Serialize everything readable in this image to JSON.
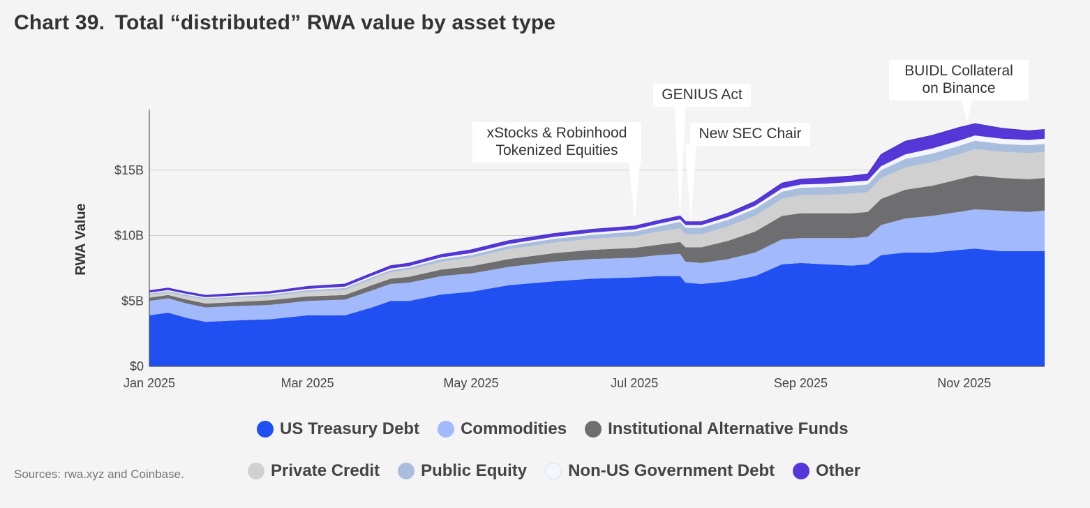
{
  "header": {
    "chart_number": "Chart 39.",
    "title": "Total “distributed” RWA value by asset type"
  },
  "source": "Sources: rwa.xyz and Coinbase.",
  "colors": {
    "us_treasury": "#2150f2",
    "commodities": "#a2b9fb",
    "inst_alt": "#6e6e70",
    "private_credit": "#d0d0d0",
    "public_equity": "#a9bedd",
    "non_us_gov": "#f3f6fd",
    "other": "#5536d6"
  },
  "chart_data": {
    "type": "area",
    "stacked": true,
    "title": "Total “distributed” RWA value by asset type",
    "xlabel": "",
    "ylabel": "RWA Value",
    "ylim": [
      0,
      20
    ],
    "y_unit": "$B",
    "yticks": [
      {
        "value": 0,
        "label": "$0"
      },
      {
        "value": 5,
        "label": "$5B"
      },
      {
        "value": 10,
        "label": "$10B"
      },
      {
        "value": 15,
        "label": "$15B"
      }
    ],
    "x_range": [
      "2025-01-01",
      "2025-12-01"
    ],
    "xticks": [
      {
        "date": "2025-01-01",
        "label": "Jan 2025"
      },
      {
        "date": "2025-03-01",
        "label": "Mar 2025"
      },
      {
        "date": "2025-05-01",
        "label": "May 2025"
      },
      {
        "date": "2025-07-01",
        "label": "Jul 2025"
      },
      {
        "date": "2025-09-01",
        "label": "Sep 2025"
      },
      {
        "date": "2025-11-01",
        "label": "Nov 2025"
      }
    ],
    "x": [
      "2025-01-01",
      "2025-01-08",
      "2025-01-15",
      "2025-01-22",
      "2025-02-01",
      "2025-02-15",
      "2025-03-01",
      "2025-03-15",
      "2025-03-25",
      "2025-04-01",
      "2025-04-08",
      "2025-04-20",
      "2025-05-01",
      "2025-05-15",
      "2025-06-01",
      "2025-06-15",
      "2025-07-01",
      "2025-07-10",
      "2025-07-18",
      "2025-07-20",
      "2025-07-26",
      "2025-08-05",
      "2025-08-15",
      "2025-08-25",
      "2025-09-01",
      "2025-09-10",
      "2025-09-20",
      "2025-09-26",
      "2025-10-01",
      "2025-10-10",
      "2025-10-20",
      "2025-10-30",
      "2025-11-05",
      "2025-11-15",
      "2025-11-25",
      "2025-12-01"
    ],
    "series": [
      {
        "name": "US Treasury Debt",
        "values": [
          3.9,
          4.1,
          3.7,
          3.4,
          3.5,
          3.6,
          3.9,
          3.9,
          4.5,
          5.0,
          5.0,
          5.5,
          5.7,
          6.2,
          6.5,
          6.7,
          6.8,
          6.9,
          6.9,
          6.4,
          6.3,
          6.5,
          6.9,
          7.8,
          7.9,
          7.8,
          7.7,
          7.8,
          8.5,
          8.7,
          8.7,
          8.9,
          9.0,
          8.8,
          8.8,
          8.8
        ]
      },
      {
        "name": "Commodities",
        "values": [
          1.1,
          1.1,
          1.1,
          1.1,
          1.1,
          1.1,
          1.1,
          1.2,
          1.3,
          1.3,
          1.4,
          1.4,
          1.4,
          1.4,
          1.5,
          1.5,
          1.5,
          1.6,
          1.7,
          1.6,
          1.6,
          1.7,
          1.8,
          1.9,
          1.9,
          2.0,
          2.1,
          2.1,
          2.3,
          2.6,
          2.8,
          2.9,
          3.0,
          3.1,
          3.0,
          3.1
        ]
      },
      {
        "name": "Institutional Alternative Funds",
        "values": [
          0.25,
          0.25,
          0.3,
          0.3,
          0.3,
          0.35,
          0.35,
          0.35,
          0.4,
          0.4,
          0.45,
          0.5,
          0.55,
          0.6,
          0.65,
          0.7,
          0.75,
          0.8,
          0.9,
          1.1,
          1.2,
          1.4,
          1.6,
          1.8,
          1.9,
          1.9,
          1.9,
          1.9,
          2.0,
          2.2,
          2.3,
          2.5,
          2.6,
          2.5,
          2.5,
          2.5
        ]
      },
      {
        "name": "Private Credit",
        "values": [
          0.2,
          0.2,
          0.25,
          0.3,
          0.3,
          0.3,
          0.35,
          0.4,
          0.45,
          0.5,
          0.55,
          0.6,
          0.65,
          0.75,
          0.8,
          0.85,
          0.9,
          1.0,
          1.05,
          1.0,
          1.0,
          1.1,
          1.2,
          1.3,
          1.4,
          1.4,
          1.5,
          1.5,
          1.6,
          1.7,
          1.8,
          1.9,
          2.0,
          2.0,
          2.0,
          2.0
        ]
      },
      {
        "name": "Public Equity",
        "values": [
          0.1,
          0.1,
          0.1,
          0.1,
          0.1,
          0.12,
          0.12,
          0.14,
          0.15,
          0.15,
          0.15,
          0.2,
          0.2,
          0.25,
          0.3,
          0.3,
          0.35,
          0.4,
          0.5,
          0.5,
          0.5,
          0.5,
          0.55,
          0.55,
          0.55,
          0.6,
          0.6,
          0.6,
          0.6,
          0.65,
          0.65,
          0.65,
          0.65,
          0.6,
          0.6,
          0.6
        ]
      },
      {
        "name": "Non-US Government Debt",
        "values": [
          0.08,
          0.08,
          0.08,
          0.08,
          0.1,
          0.1,
          0.1,
          0.1,
          0.12,
          0.12,
          0.12,
          0.13,
          0.15,
          0.15,
          0.15,
          0.17,
          0.17,
          0.2,
          0.2,
          0.2,
          0.2,
          0.22,
          0.22,
          0.25,
          0.25,
          0.25,
          0.3,
          0.3,
          0.3,
          0.35,
          0.4,
          0.4,
          0.4,
          0.4,
          0.4,
          0.4
        ]
      },
      {
        "name": "Other",
        "values": [
          0.15,
          0.15,
          0.15,
          0.15,
          0.15,
          0.15,
          0.18,
          0.2,
          0.2,
          0.22,
          0.22,
          0.22,
          0.25,
          0.25,
          0.25,
          0.25,
          0.25,
          0.25,
          0.25,
          0.25,
          0.25,
          0.3,
          0.35,
          0.4,
          0.4,
          0.45,
          0.45,
          0.5,
          0.9,
          1.0,
          1.0,
          1.0,
          0.9,
          0.8,
          0.7,
          0.7
        ]
      }
    ],
    "annotations": [
      {
        "lines": [
          "xStocks & Robinhood",
          "Tokenized Equities"
        ],
        "date": "2025-07-01",
        "value": 10.8
      },
      {
        "lines": [
          "GENIUS Act"
        ],
        "date": "2025-07-18",
        "value": 11.1
      },
      {
        "lines": [
          "New SEC Chair"
        ],
        "date": "2025-07-22",
        "value": 10.8
      },
      {
        "lines": [
          "BUIDL Collateral",
          "on Binance"
        ],
        "date": "2025-11-02",
        "value": 18.4
      }
    ],
    "legend_position": "bottom"
  }
}
